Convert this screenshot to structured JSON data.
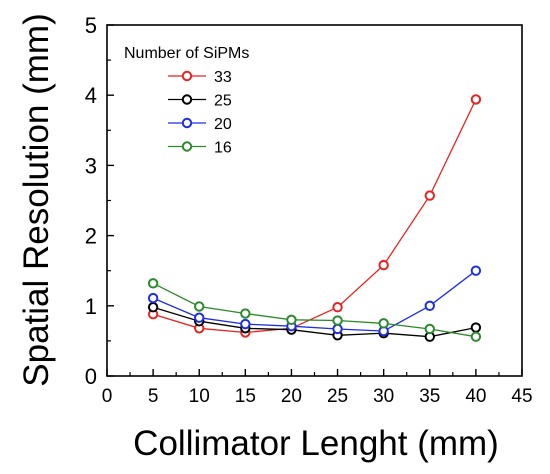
{
  "chart_data": {
    "type": "line",
    "xlabel": "Collimator Lenght (mm)",
    "ylabel": "Spatial Resolution (mm)",
    "xlim": [
      0,
      45
    ],
    "ylim": [
      0,
      5
    ],
    "xticks": [
      0,
      5,
      10,
      15,
      20,
      25,
      30,
      35,
      40,
      45
    ],
    "yticks": [
      0,
      1,
      2,
      3,
      4,
      5
    ],
    "grid": false,
    "legend": {
      "title": "Number of SiPMs",
      "position": "top-left"
    },
    "series": [
      {
        "name": "33",
        "color": "#e8231f",
        "x": [
          5,
          10,
          15,
          20,
          25,
          30,
          35,
          40
        ],
        "values": [
          0.88,
          0.68,
          0.62,
          0.68,
          0.98,
          1.58,
          2.57,
          3.94
        ]
      },
      {
        "name": "25",
        "color": "#000000",
        "x": [
          5,
          10,
          15,
          20,
          25,
          30,
          35,
          40
        ],
        "values": [
          0.98,
          0.78,
          0.68,
          0.66,
          0.58,
          0.61,
          0.56,
          0.69
        ]
      },
      {
        "name": "20",
        "color": "#1c2ee6",
        "x": [
          5,
          10,
          15,
          20,
          25,
          30,
          35,
          40
        ],
        "values": [
          1.11,
          0.83,
          0.74,
          0.71,
          0.67,
          0.64,
          1.0,
          1.5
        ]
      },
      {
        "name": "16",
        "color": "#2b8a2b",
        "x": [
          5,
          10,
          15,
          20,
          25,
          30,
          35,
          40
        ],
        "values": [
          1.32,
          0.99,
          0.89,
          0.8,
          0.79,
          0.75,
          0.67,
          0.56
        ]
      }
    ]
  }
}
